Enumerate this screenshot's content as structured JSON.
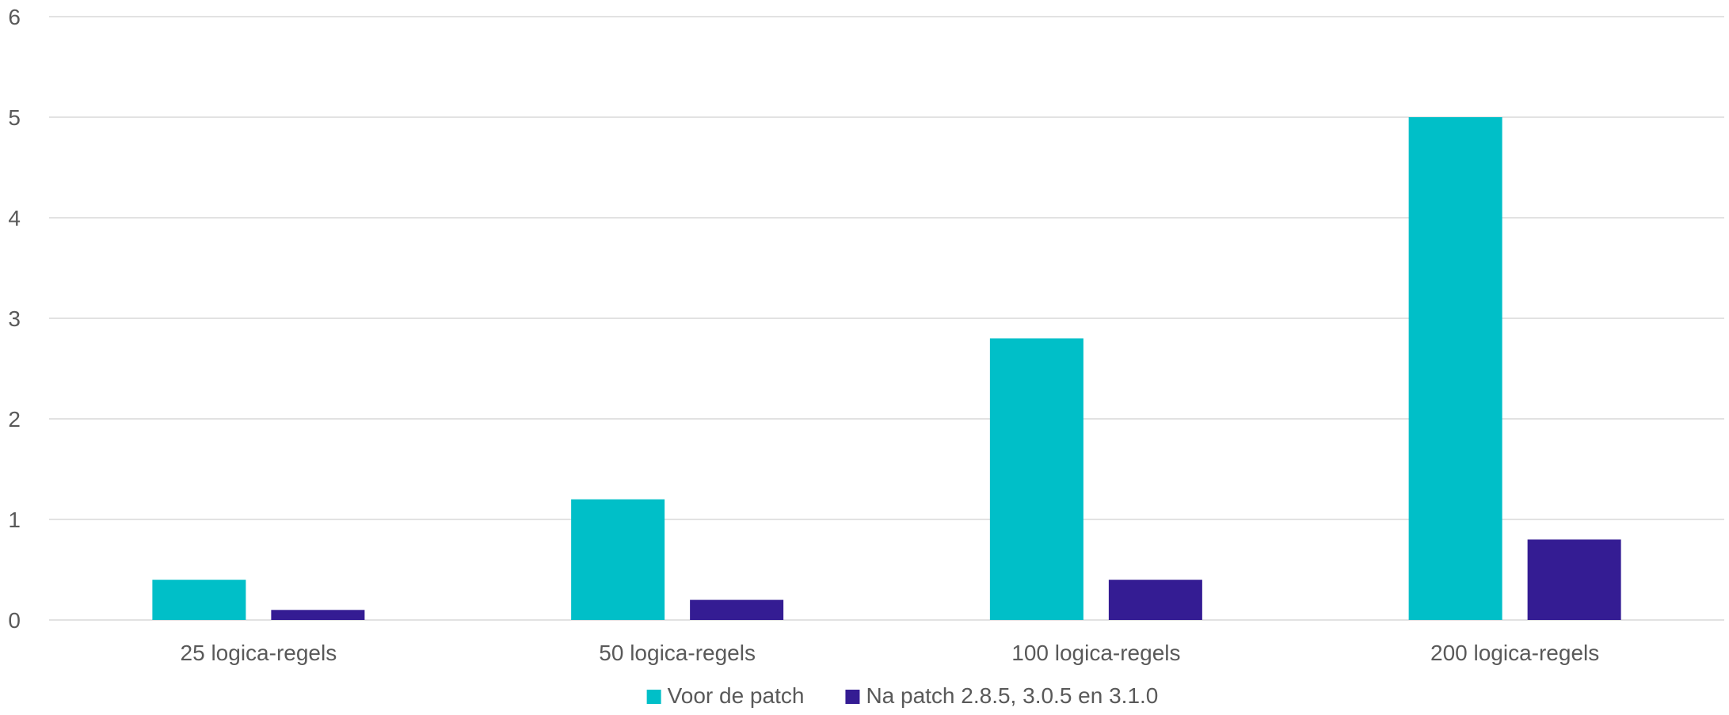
{
  "chart_data": {
    "type": "bar",
    "title": "",
    "xlabel": "",
    "ylabel": "",
    "categories": [
      "25 logica-regels",
      "50 logica-regels",
      "100 logica-regels",
      "200 logica-regels"
    ],
    "series": [
      {
        "name": "Voor de patch",
        "color": "#00bfc8",
        "values": [
          0.4,
          1.2,
          2.8,
          5.0
        ]
      },
      {
        "name": "Na patch 2.8.5, 3.0.5 en 3.1.0",
        "color": "#341c93",
        "values": [
          0.1,
          0.2,
          0.4,
          0.8
        ]
      }
    ],
    "ylim": [
      0,
      6
    ],
    "yticks": [
      0,
      1,
      2,
      3,
      4,
      5,
      6
    ],
    "grid": true,
    "legend_position": "bottom-center"
  }
}
